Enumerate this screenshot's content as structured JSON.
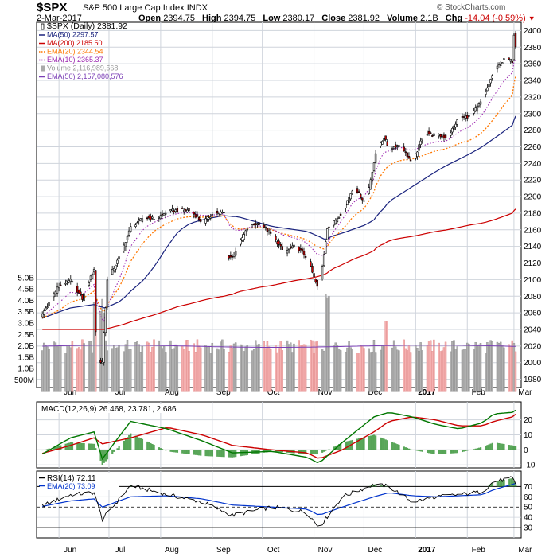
{
  "header": {
    "symbol": "$SPX",
    "name": "S&P 500 Large Cap Index",
    "exchange": "INDX",
    "watermark": "© StockCharts.com",
    "date": "2-Mar-2017",
    "open_label": "Open",
    "open": "2394.75",
    "high_label": "High",
    "high": "2394.75",
    "low_label": "Low",
    "low": "2380.17",
    "close_label": "Close",
    "close": "2381.92",
    "volume_label": "Volume",
    "volume": "2.1B",
    "chg_label": "Chg",
    "chg": "-14.04 (-0.59%)"
  },
  "colors": {
    "up_candle": "#ffffff",
    "down_candle": "#cc0000",
    "ma50": "#1a237e",
    "ma200": "#cc0000",
    "ema20": "#ff7700",
    "ema10": "#9c27b0",
    "vol_up": "#b0b0b0",
    "vol_down": "#f4b0b0",
    "vol_ema50": "#7b3fb6",
    "macd": "#007700",
    "macd_signal": "#cc0000",
    "macd_hist": "#228822",
    "rsi": "#000000",
    "rsi_ema": "#0033cc"
  },
  "chart_data": [
    {
      "type": "line",
      "panel": "price",
      "title": "$SPX (Daily) 2381.92",
      "ylim": [
        1970,
        2410
      ],
      "y_ticks": [
        1980,
        2000,
        2020,
        2040,
        2060,
        2080,
        2100,
        2120,
        2140,
        2160,
        2180,
        2200,
        2220,
        2240,
        2260,
        2280,
        2300,
        2320,
        2340,
        2360,
        2380,
        2400
      ],
      "volume_ticks": [
        "5.0B",
        "4.5B",
        "4.0B",
        "3.5B",
        "3.0B",
        "2.5B",
        "2.0B",
        "1.5B",
        "1.0B",
        "500M"
      ],
      "x_labels": [
        "Jun",
        "Jul",
        "Aug",
        "Sep",
        "Oct",
        "Nov",
        "Dec",
        "2017",
        "Feb",
        "Mar"
      ],
      "grid": true,
      "legend": "top-left",
      "legend_entries": [
        "$SPX (Daily) 2381.92",
        "MA(50) 2297.57",
        "MA(200) 2185.50",
        "EMA(20) 2344.54",
        "EMA(10) 2365.37",
        "Volume 2,116,989,568",
        "EMA(50) 2,157,080,576"
      ],
      "x": [
        "May-20",
        "Jun-01",
        "Jun-08",
        "Jun-15",
        "Jun-22",
        "Jun-23",
        "Jun-24",
        "Jun-27",
        "Jun-28",
        "Jun-30",
        "Jul-08",
        "Jul-14",
        "Jul-22",
        "Jul-29",
        "Aug-05",
        "Aug-12",
        "Aug-19",
        "Aug-26",
        "Sep-02",
        "Sep-08",
        "Sep-09",
        "Sep-13",
        "Sep-16",
        "Sep-23",
        "Sep-30",
        "Oct-07",
        "Oct-14",
        "Oct-21",
        "Oct-28",
        "Nov-04",
        "Nov-07",
        "Nov-09",
        "Nov-11",
        "Nov-18",
        "Nov-25",
        "Dec-02",
        "Dec-07",
        "Dec-09",
        "Dec-13",
        "Dec-16",
        "Dec-23",
        "Dec-30",
        "Jan-06",
        "Jan-13",
        "Jan-20",
        "Jan-27",
        "Feb-03",
        "Feb-10",
        "Feb-17",
        "Feb-24",
        "Feb-28",
        "Mar-01",
        "Mar-02"
      ],
      "series": [
        {
          "name": "$SPX (Daily)",
          "values": [
            2052,
            2093,
            2099,
            2077,
            2113,
            2037,
            2000,
            2001,
            2036,
            2099,
            2130,
            2163,
            2175,
            2173,
            2182,
            2184,
            2183,
            2169,
            2180,
            2181,
            2128,
            2127,
            2139,
            2165,
            2168,
            2153,
            2133,
            2141,
            2126,
            2085,
            2131,
            2163,
            2164,
            2182,
            2213,
            2191,
            2241,
            2259,
            2271,
            2258,
            2263,
            2239,
            2277,
            2274,
            2271,
            2295,
            2297,
            2316,
            2351,
            2367,
            2363,
            2396,
            2382
          ]
        },
        {
          "name": "MA(50)",
          "values": [
            2052,
            2061,
            2066,
            2068,
            2070,
            2069,
            2068,
            2067,
            2066,
            2067,
            2074,
            2086,
            2100,
            2118,
            2140,
            2159,
            2168,
            2172,
            2175,
            2177,
            2177,
            2176,
            2176,
            2172,
            2168,
            2164,
            2162,
            2160,
            2158,
            2152,
            2149,
            2149,
            2152,
            2156,
            2161,
            2166,
            2172,
            2178,
            2186,
            2194,
            2203,
            2212,
            2221,
            2230,
            2238,
            2245,
            2252,
            2260,
            2270,
            2280,
            2286,
            2292,
            2297
          ]
        },
        {
          "name": "MA(200)",
          "values": [
            2040,
            2040,
            2040,
            2040,
            2040,
            2040,
            2040,
            2040,
            2040,
            2041,
            2045,
            2049,
            2054,
            2058,
            2063,
            2068,
            2071,
            2075,
            2078,
            2080,
            2081,
            2082,
            2085,
            2088,
            2091,
            2093,
            2096,
            2099,
            2101,
            2104,
            2106,
            2108,
            2112,
            2118,
            2125,
            2130,
            2135,
            2140,
            2143,
            2147,
            2150,
            2152,
            2155,
            2158,
            2160,
            2163,
            2166,
            2168,
            2172,
            2177,
            2180,
            2183,
            2185
          ]
        },
        {
          "name": "EMA(20)",
          "values": [
            2052,
            2063,
            2073,
            2077,
            2086,
            2080,
            2070,
            2063,
            2061,
            2070,
            2093,
            2122,
            2146,
            2160,
            2168,
            2174,
            2176,
            2175,
            2176,
            2177,
            2171,
            2165,
            2160,
            2162,
            2163,
            2160,
            2155,
            2152,
            2148,
            2138,
            2137,
            2140,
            2147,
            2160,
            2177,
            2187,
            2206,
            2219,
            2231,
            2238,
            2244,
            2245,
            2250,
            2255,
            2258,
            2264,
            2268,
            2277,
            2294,
            2313,
            2322,
            2336,
            2345
          ]
        },
        {
          "name": "EMA(10)",
          "values": [
            2052,
            2072,
            2085,
            2082,
            2094,
            2080,
            2065,
            2052,
            2050,
            2068,
            2104,
            2140,
            2162,
            2170,
            2176,
            2180,
            2181,
            2177,
            2178,
            2179,
            2170,
            2162,
            2158,
            2163,
            2165,
            2161,
            2153,
            2150,
            2144,
            2128,
            2130,
            2142,
            2153,
            2172,
            2195,
            2201,
            2222,
            2239,
            2253,
            2255,
            2260,
            2255,
            2262,
            2266,
            2267,
            2278,
            2285,
            2298,
            2322,
            2342,
            2349,
            2362,
            2365
          ]
        }
      ]
    },
    {
      "type": "bar",
      "panel": "macd",
      "title": "MACD(12,26,9) 26.468, 23.781, 2.686",
      "ylim": [
        -12,
        32
      ],
      "y_ticks": [
        20,
        10,
        0,
        -10
      ],
      "legend": "top-left",
      "legend_entries": [
        "MACD(12,26,9) 26.468, 23.781, 2.686"
      ],
      "x": [
        "May-20",
        "Jun-08",
        "Jun-22",
        "Jun-27",
        "Jul-14",
        "Aug-05",
        "Aug-26",
        "Sep-13",
        "Oct-07",
        "Oct-28",
        "Nov-04",
        "Nov-18",
        "Dec-07",
        "Dec-16",
        "Dec-30",
        "Jan-13",
        "Jan-27",
        "Feb-10",
        "Feb-17",
        "Feb-28",
        "Mar-02"
      ],
      "series": [
        {
          "name": "MACD",
          "values": [
            -4,
            8,
            12,
            -6,
            19,
            14,
            6,
            -2,
            -1,
            -5,
            -9,
            5,
            22,
            25,
            22,
            17,
            14,
            18,
            24,
            25,
            26.5
          ]
        },
        {
          "name": "Signal",
          "values": [
            -3,
            3,
            8,
            4,
            8,
            15,
            10,
            3,
            0,
            -2,
            -6,
            0,
            12,
            19,
            22,
            20,
            16,
            16,
            19,
            22,
            23.8
          ]
        },
        {
          "name": "Histogram",
          "values": [
            -1,
            5,
            4,
            -10,
            11,
            -1,
            -4,
            -5,
            -1,
            -3,
            -3,
            5,
            10,
            6,
            0,
            -3,
            -2,
            2,
            5,
            3,
            2.7
          ]
        }
      ]
    },
    {
      "type": "line",
      "panel": "rsi",
      "title": "RSI(14) 72.11",
      "ylim": [
        20,
        85
      ],
      "y_ticks": [
        70,
        60,
        50,
        40,
        30
      ],
      "legend": "top-left",
      "legend_entries": [
        "RSI(14) 72.11",
        "EMA(20) 73.09"
      ],
      "x": [
        "May-20",
        "Jun-08",
        "Jun-22",
        "Jun-27",
        "Jul-14",
        "Aug-05",
        "Aug-26",
        "Sep-13",
        "Oct-07",
        "Oct-28",
        "Nov-04",
        "Nov-18",
        "Dec-07",
        "Dec-16",
        "Dec-30",
        "Jan-13",
        "Jan-27",
        "Feb-10",
        "Feb-17",
        "Feb-28",
        "Mar-02"
      ],
      "series": [
        {
          "name": "RSI(14)",
          "values": [
            50,
            62,
            64,
            38,
            71,
            62,
            55,
            42,
            50,
            45,
            30,
            60,
            72,
            70,
            55,
            60,
            62,
            65,
            75,
            78,
            72.11
          ]
        },
        {
          "name": "EMA(20)",
          "values": [
            50,
            56,
            58,
            50,
            60,
            61,
            58,
            52,
            50,
            48,
            42,
            50,
            60,
            64,
            61,
            60,
            61,
            62,
            67,
            72,
            73.09
          ]
        }
      ]
    }
  ]
}
